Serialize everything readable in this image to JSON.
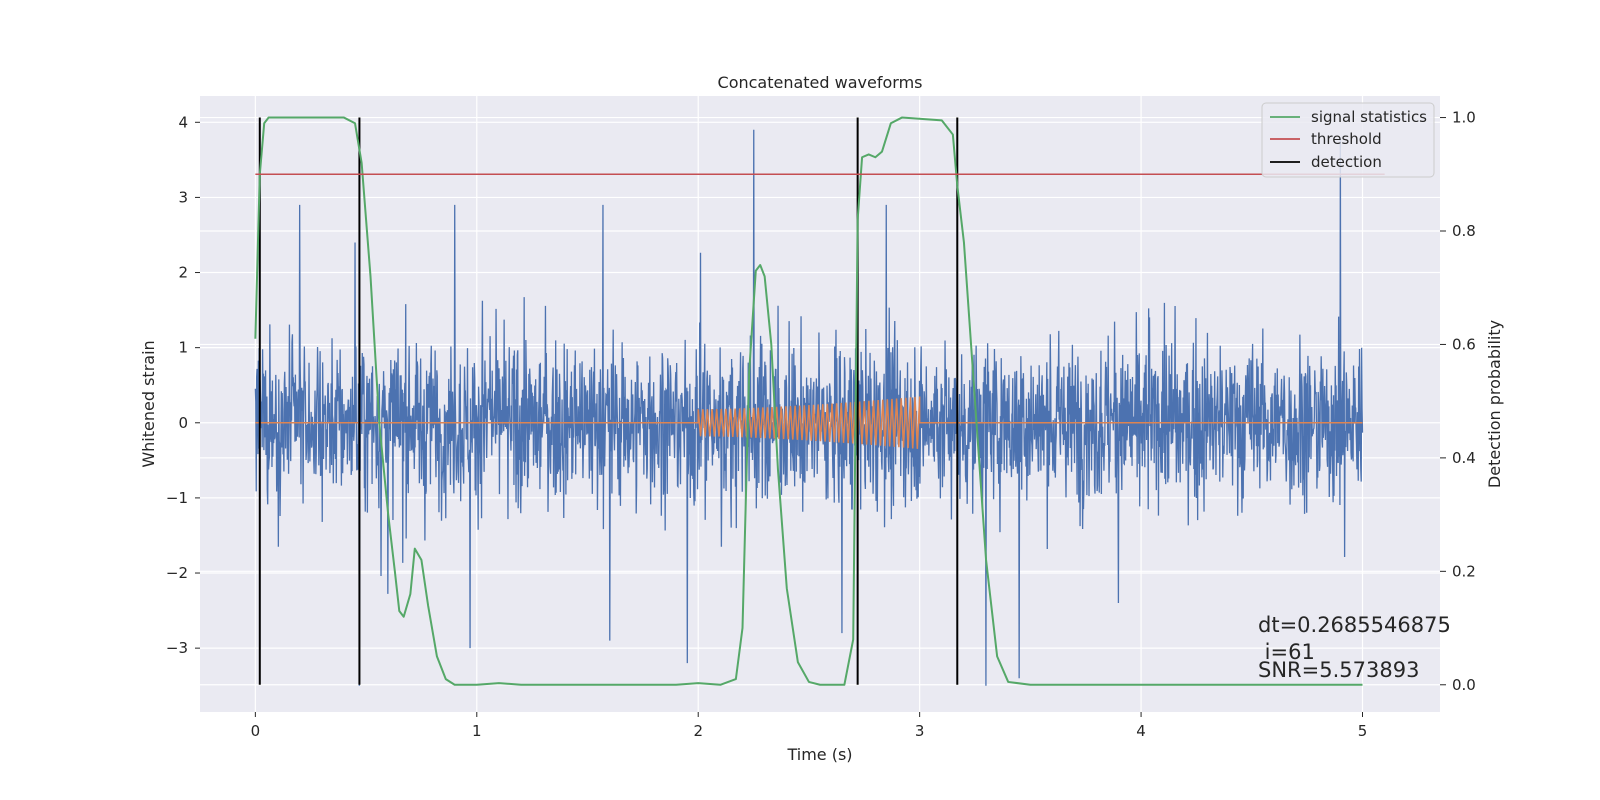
{
  "chart_data": {
    "type": "line",
    "title": "Concatenated waveforms",
    "xlabel": "Time (s)",
    "ylabel": "Whitened strain",
    "y2label": "Detection probability",
    "xlim": [
      -0.25,
      5.35
    ],
    "ylim": [
      -3.85,
      4.35
    ],
    "y2lim": [
      -0.048,
      1.038
    ],
    "x_ticks": [
      0,
      1,
      2,
      3,
      4,
      5
    ],
    "x_tick_labels": [
      "0",
      "1",
      "2",
      "3",
      "4",
      "5"
    ],
    "y_ticks": [
      4,
      3,
      2,
      1,
      0,
      -1,
      -2,
      -3
    ],
    "y_tick_labels": [
      "4",
      "3",
      "2",
      "1",
      "0",
      "−1",
      "−2",
      "−3"
    ],
    "y2_ticks": [
      1.0,
      0.8,
      0.6,
      0.4,
      0.2,
      0.0
    ],
    "y2_tick_labels": [
      "1.0",
      "0.8",
      "0.6",
      "0.4",
      "0.2",
      "0.0"
    ],
    "grid": true,
    "legend_position": "top-right",
    "legend": [
      {
        "label": "signal statistics",
        "color": "#55a868"
      },
      {
        "label": "threshold",
        "color": "#c44e52"
      },
      {
        "label": "detection",
        "color": "#000000"
      }
    ],
    "series": [
      {
        "role": "whitened strain (noisy)",
        "color": "#4c72b0",
        "x_range": [
          0,
          5
        ],
        "typical_band": [
          -1.6,
          1.6
        ],
        "spikes": [
          {
            "x": 0.45,
            "y": 2.4
          },
          {
            "x": 0.47,
            "y": -3.5
          },
          {
            "x": 0.2,
            "y": 2.9
          },
          {
            "x": 0.9,
            "y": 2.9
          },
          {
            "x": 0.97,
            "y": -3.0
          },
          {
            "x": 1.57,
            "y": 2.9
          },
          {
            "x": 1.6,
            "y": -2.9
          },
          {
            "x": 1.95,
            "y": -3.2
          },
          {
            "x": 2.25,
            "y": 3.9
          },
          {
            "x": 2.65,
            "y": -2.8
          },
          {
            "x": 2.85,
            "y": 2.9
          },
          {
            "x": 3.3,
            "y": -3.5
          },
          {
            "x": 3.45,
            "y": -3.4
          },
          {
            "x": 4.9,
            "y": 3.8
          }
        ]
      },
      {
        "role": "injected waveform",
        "color": "#dd8452",
        "x_range": [
          0,
          5
        ],
        "active_range": [
          2.0,
          3.0
        ],
        "amplitude_start": 0.18,
        "amplitude_end": 0.35
      },
      {
        "name": "signal statistics",
        "color": "#55a868",
        "axis": "right",
        "x": [
          0,
          0.02,
          0.04,
          0.06,
          0.08,
          0.1,
          0.4,
          0.45,
          0.48,
          0.52,
          0.56,
          0.6,
          0.63,
          0.65,
          0.67,
          0.7,
          0.72,
          0.75,
          0.78,
          0.82,
          0.86,
          0.9,
          1.0,
          1.1,
          1.2,
          1.9,
          2.0,
          2.1,
          2.17,
          2.2,
          2.23,
          2.26,
          2.28,
          2.3,
          2.33,
          2.36,
          2.4,
          2.45,
          2.5,
          2.55,
          2.6,
          2.66,
          2.7,
          2.72,
          2.74,
          2.77,
          2.8,
          2.83,
          2.87,
          2.92,
          3.1,
          3.15,
          3.17,
          3.2,
          3.25,
          3.3,
          3.35,
          3.4,
          3.5,
          4.0,
          4.5,
          5.0
        ],
        "y": [
          0.61,
          0.9,
          0.99,
          1.0,
          1.0,
          1.0,
          1.0,
          0.99,
          0.92,
          0.72,
          0.46,
          0.3,
          0.2,
          0.13,
          0.12,
          0.16,
          0.24,
          0.22,
          0.14,
          0.05,
          0.01,
          0.0,
          0.0,
          0.003,
          0.0,
          0.0,
          0.003,
          0.0,
          0.01,
          0.1,
          0.55,
          0.73,
          0.74,
          0.72,
          0.6,
          0.38,
          0.17,
          0.04,
          0.005,
          0.0,
          0.0,
          0.0,
          0.08,
          0.82,
          0.93,
          0.935,
          0.93,
          0.94,
          0.99,
          1.0,
          0.995,
          0.97,
          0.88,
          0.78,
          0.5,
          0.22,
          0.05,
          0.005,
          0.0,
          0.0,
          0.0,
          0.0
        ]
      },
      {
        "name": "threshold",
        "color": "#c44e52",
        "axis": "right",
        "x": [
          0,
          5.1
        ],
        "y": [
          0.9,
          0.9
        ]
      }
    ],
    "detections": [
      0.02,
      0.47,
      2.72,
      3.17
    ],
    "detection_color": "#000000",
    "annotations": [
      "dt=0.2685546875",
      " i=61",
      "SNR=5.573893"
    ]
  }
}
